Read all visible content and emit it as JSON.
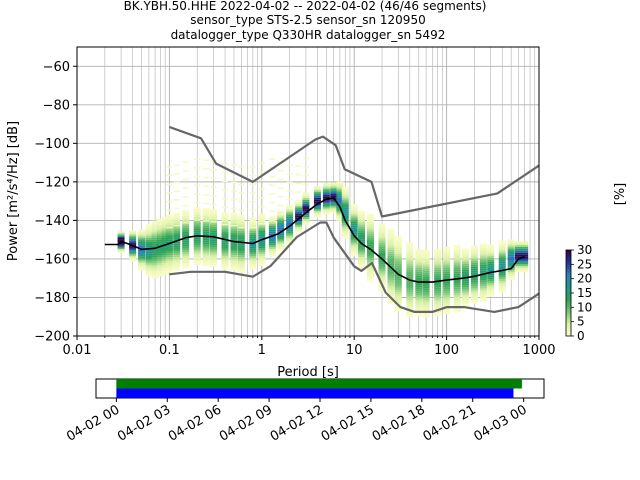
{
  "chart_data": {
    "type": "heatmap",
    "title_lines": [
      "BK.YBH.50.HHE   2022-04-02 -- 2022-04-02  (46/46 segments)",
      "sensor_type STS-2.5 sensor_sn 120950",
      "datalogger_type Q330HR datalogger_sn 5492"
    ],
    "xlabel": "Period [s]",
    "ylabel": "Power [m²/s⁴/Hz] [dB]",
    "x_scale": "log",
    "xlim": [
      0.01,
      1000
    ],
    "ylim": [
      -200,
      -50
    ],
    "x_ticks": [
      {
        "value": 0.01,
        "label": "0.01"
      },
      {
        "value": 0.1,
        "label": "0.1"
      },
      {
        "value": 1,
        "label": "1"
      },
      {
        "value": 10,
        "label": "10"
      },
      {
        "value": 100,
        "label": "100"
      },
      {
        "value": 1000,
        "label": "1000"
      }
    ],
    "y_ticks": [
      {
        "value": -60,
        "label": "−60"
      },
      {
        "value": -80,
        "label": "−80"
      },
      {
        "value": -100,
        "label": "−100"
      },
      {
        "value": -120,
        "label": "−120"
      },
      {
        "value": -140,
        "label": "−140"
      },
      {
        "value": -160,
        "label": "−160"
      },
      {
        "value": -180,
        "label": "−180"
      },
      {
        "value": -200,
        "label": "−200"
      }
    ],
    "grid": true,
    "series": [
      {
        "role": "noise-model-high",
        "color": "#666666",
        "x": [
          0.1,
          0.22,
          0.32,
          0.8,
          3.8,
          4.6,
          6.3,
          7.9,
          15.4,
          20,
          354.8,
          1000
        ],
        "y": [
          -91.5,
          -97.4,
          -110.5,
          -120,
          -98,
          -96.5,
          -101,
          -113.5,
          -120,
          -138,
          -126,
          -111.5
        ]
      },
      {
        "role": "noise-model-low",
        "color": "#666666",
        "x": [
          0.1,
          0.17,
          0.4,
          0.8,
          1.24,
          2.4,
          4.3,
          5.0,
          6.0,
          10,
          12,
          15.6,
          21.9,
          31.6,
          45,
          70,
          101,
          154,
          328,
          600,
          1000
        ],
        "y": [
          -168,
          -166.7,
          -166.7,
          -169.2,
          -163.7,
          -148.6,
          -141.1,
          -141.1,
          -149,
          -163.8,
          -166.2,
          -162.1,
          -177.5,
          -185,
          -187.5,
          -187.5,
          -185,
          -185,
          -187.5,
          -185,
          -178
        ]
      },
      {
        "role": "mode",
        "color": "#000000",
        "x": [
          0.02,
          0.028,
          0.03,
          0.035,
          0.05,
          0.07,
          0.1,
          0.15,
          0.2,
          0.3,
          0.5,
          0.8,
          1,
          1.5,
          2,
          3,
          4,
          5,
          6,
          7,
          8,
          10,
          12,
          15,
          20,
          30,
          40,
          50,
          70,
          100,
          150,
          200,
          300,
          400,
          500,
          600,
          700
        ],
        "y": [
          -152.5,
          -152.5,
          -151,
          -152,
          -155,
          -154.5,
          -152,
          -149,
          -148,
          -148.5,
          -151,
          -152,
          -150,
          -147,
          -143,
          -136,
          -131.5,
          -129,
          -128.5,
          -133,
          -140,
          -148,
          -152,
          -155,
          -160,
          -168,
          -171,
          -172,
          -172,
          -171,
          -170,
          -169,
          -167,
          -166,
          -165,
          -160,
          -159
        ]
      }
    ],
    "heatmap": {
      "description_values": "probability density percent per period/power bin",
      "bins_x": [
        0.03,
        0.04,
        0.05,
        0.06,
        0.07,
        0.08,
        0.09,
        0.1,
        0.12,
        0.15,
        0.2,
        0.25,
        0.3,
        0.4,
        0.5,
        0.6,
        0.8,
        1,
        1.3,
        1.6,
        2,
        2.5,
        3,
        4,
        5,
        6,
        7,
        8,
        10,
        12,
        15,
        20,
        25,
        30,
        40,
        50,
        60,
        80,
        100,
        130,
        160,
        200,
        250,
        300,
        400,
        500,
        600,
        700
      ],
      "center_y": [
        -151,
        -153,
        -155,
        -155.5,
        -155,
        -154,
        -153,
        -152,
        -151,
        -149.5,
        -148,
        -148.5,
        -149,
        -150.5,
        -151,
        -152,
        -152,
        -150,
        -148,
        -145,
        -142,
        -138,
        -134,
        -130,
        -128.5,
        -128,
        -130,
        -136,
        -145,
        -150,
        -154,
        -159,
        -164,
        -168,
        -171,
        -172,
        -172.5,
        -172,
        -171,
        -170,
        -169.5,
        -168,
        -167,
        -166,
        -164,
        -160,
        -158.5,
        -158.5
      ],
      "spread_db": [
        2,
        3,
        4,
        5,
        6,
        6,
        6,
        6,
        6,
        6,
        6,
        6,
        6,
        6,
        6,
        6,
        5,
        5,
        4,
        4,
        4,
        3,
        3,
        3,
        3,
        3,
        4,
        5,
        5,
        6,
        7,
        7,
        8,
        8,
        8,
        7,
        7,
        7,
        7,
        7,
        6,
        6,
        6,
        5,
        5,
        4,
        3,
        3
      ]
    },
    "colorbar": {
      "label": "[%]",
      "min": 0,
      "max": 30,
      "ticks": [
        {
          "value": 0,
          "label": "0"
        },
        {
          "value": 5,
          "label": "5"
        },
        {
          "value": 10,
          "label": "10"
        },
        {
          "value": 15,
          "label": "15"
        },
        {
          "value": 20,
          "label": "20"
        },
        {
          "value": 25,
          "label": "25"
        },
        {
          "value": 30,
          "label": "30"
        }
      ],
      "colors": [
        "#ffffcc",
        "#d9f0a3",
        "#78c679",
        "#31a354",
        "#1d9a8a",
        "#2c7fb8",
        "#253494",
        "#2d0a4e"
      ]
    },
    "coverage": {
      "ticks": [
        {
          "value": 0,
          "label": "04-02 00"
        },
        {
          "value": 3,
          "label": "04-02 03"
        },
        {
          "value": 6,
          "label": "04-02 06"
        },
        {
          "value": 9,
          "label": "04-02 09"
        },
        {
          "value": 12,
          "label": "04-02 12"
        },
        {
          "value": 15,
          "label": "04-02 15"
        },
        {
          "value": 18,
          "label": "04-02 18"
        },
        {
          "value": 21,
          "label": "04-02 21"
        },
        {
          "value": 24,
          "label": "04-03 00"
        }
      ],
      "range_hours": [
        -1.2,
        25.2
      ],
      "bars": [
        {
          "role": "data-available",
          "color": "#008000",
          "start": 0,
          "end": 23.9
        },
        {
          "role": "psd-used",
          "color": "#0000ff",
          "start": 0,
          "end": 23.4
        }
      ]
    }
  }
}
